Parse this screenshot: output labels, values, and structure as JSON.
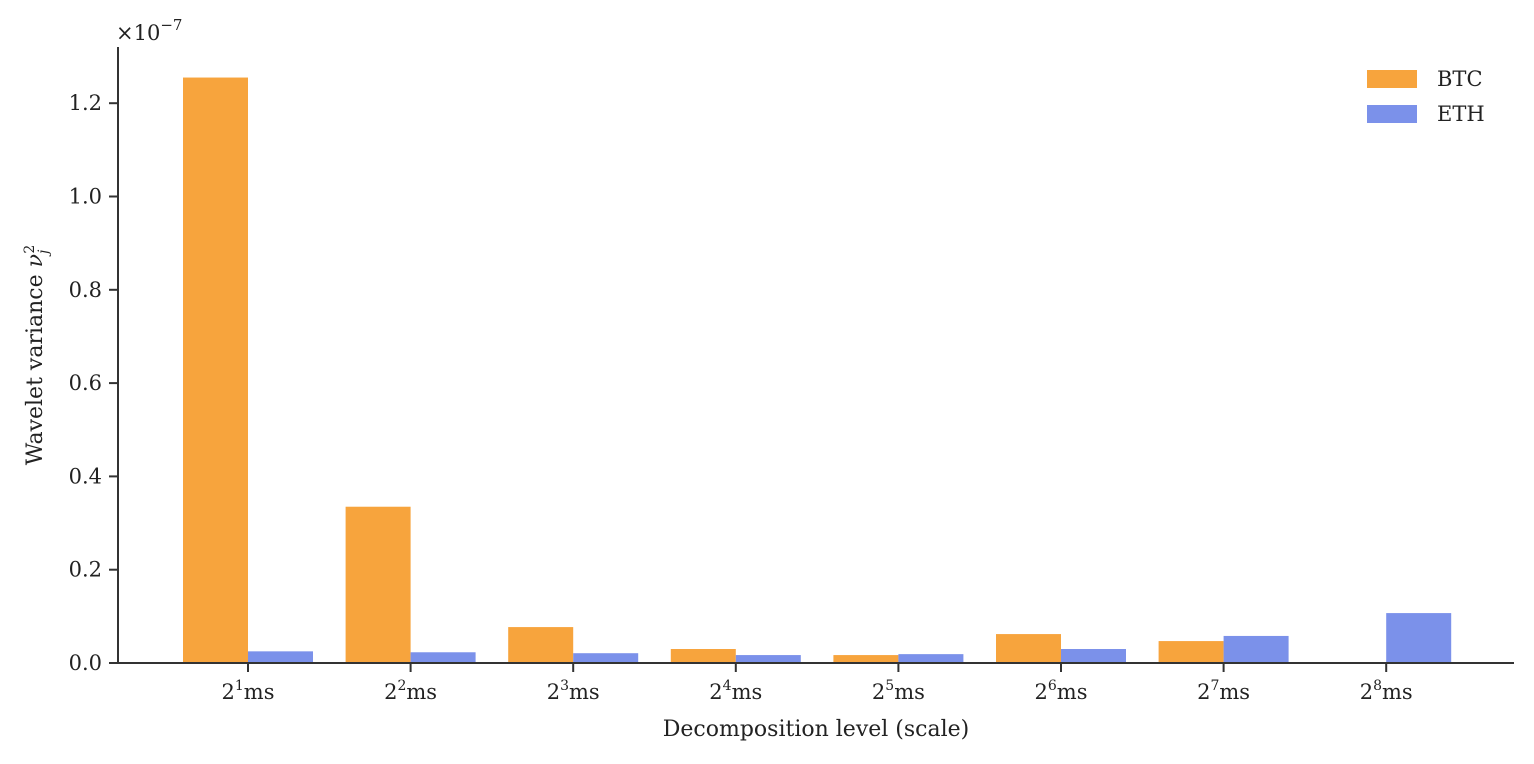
{
  "chart_data": {
    "type": "bar",
    "title": "",
    "xlabel": "Decomposition level (scale)",
    "ylabel": "Wavelet variance ν_j^2",
    "y_multiplier": "×10^-7",
    "categories": [
      "2^1ms",
      "2^2ms",
      "2^3ms",
      "2^4ms",
      "2^5ms",
      "2^6ms",
      "2^7ms",
      "2^8ms"
    ],
    "category_labels": [
      {
        "base": "2",
        "exp": "1",
        "unit": "ms"
      },
      {
        "base": "2",
        "exp": "2",
        "unit": "ms"
      },
      {
        "base": "2",
        "exp": "3",
        "unit": "ms"
      },
      {
        "base": "2",
        "exp": "4",
        "unit": "ms"
      },
      {
        "base": "2",
        "exp": "5",
        "unit": "ms"
      },
      {
        "base": "2",
        "exp": "6",
        "unit": "ms"
      },
      {
        "base": "2",
        "exp": "7",
        "unit": "ms"
      },
      {
        "base": "2",
        "exp": "8",
        "unit": "ms"
      }
    ],
    "series": [
      {
        "name": "BTC",
        "color": "#F7A43D",
        "values": [
          1.255,
          0.335,
          0.077,
          0.03,
          0.017,
          0.062,
          0.047,
          0.0
        ]
      },
      {
        "name": "ETH",
        "color": "#7B91EA",
        "values": [
          0.025,
          0.023,
          0.021,
          0.017,
          0.019,
          0.03,
          0.058,
          0.107
        ]
      }
    ],
    "ylim": [
      0,
      1.32
    ],
    "yticks": [
      0.0,
      0.2,
      0.4,
      0.6,
      0.8,
      1.0,
      1.2
    ],
    "ytick_labels": [
      "0.0",
      "0.2",
      "0.4",
      "0.6",
      "0.8",
      "1.0",
      "1.2"
    ],
    "grid": false,
    "legend_position": "upper right"
  }
}
